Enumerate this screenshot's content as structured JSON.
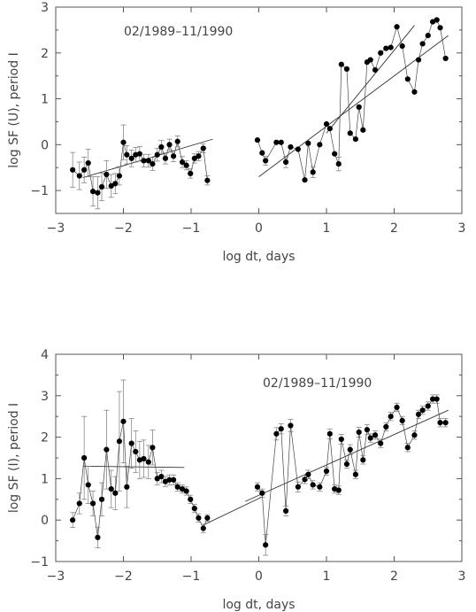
{
  "chart_data": [
    {
      "type": "scatter",
      "title": "",
      "annotation": "02/1989–11/1990",
      "xlabel": "log dt, days",
      "ylabel": "log SF (U), period I",
      "xlim": [
        -3,
        3
      ],
      "ylim": [
        -1.5,
        3
      ],
      "xticks": [
        "−3",
        "−2",
        "−1",
        "0",
        "1",
        "2",
        "3"
      ],
      "yticks": [
        "−1",
        "0",
        "1",
        "2",
        "3"
      ],
      "grid": false,
      "series": [
        {
          "x": [
            -2.75,
            -2.65,
            -2.58,
            -2.52,
            -2.45,
            -2.38,
            -2.32,
            -2.25,
            -2.18,
            -2.12,
            -2.06,
            -2.0,
            -1.95,
            -1.88,
            -1.82,
            -1.76,
            -1.7,
            -1.63,
            -1.57,
            -1.5,
            -1.44,
            -1.38,
            -1.32,
            -1.26,
            -1.2,
            -1.13,
            -1.07,
            -1.01,
            -0.95,
            -0.89,
            -0.82,
            -0.76
          ],
          "y": [
            -0.55,
            -0.68,
            -0.55,
            -0.4,
            -1.02,
            -1.05,
            -0.92,
            -0.65,
            -0.9,
            -0.85,
            -0.68,
            0.05,
            -0.22,
            -0.3,
            -0.22,
            -0.2,
            -0.35,
            -0.35,
            -0.42,
            -0.22,
            -0.05,
            -0.3,
            0.0,
            -0.25,
            0.07,
            -0.38,
            -0.45,
            -0.63,
            -0.3,
            -0.25,
            -0.08,
            -0.78
          ],
          "err": [
            0.38,
            0.3,
            0.28,
            0.3,
            0.32,
            0.35,
            0.3,
            0.3,
            0.25,
            0.22,
            0.2,
            0.38,
            0.2,
            0.18,
            0.16,
            0.16,
            0.14,
            0.14,
            0.14,
            0.14,
            0.14,
            0.12,
            0.12,
            0.12,
            0.12,
            0.12,
            0.1,
            0.1,
            0.1,
            0.1,
            0.1,
            0.1
          ]
        },
        {
          "x": [
            -0.02,
            0.05,
            0.1,
            0.26,
            0.33,
            0.4,
            0.47,
            0.58,
            0.68,
            0.73,
            0.8,
            0.9,
            1.0,
            1.05,
            1.12,
            1.18,
            1.22,
            1.3,
            1.35,
            1.43,
            1.48,
            1.54,
            1.6,
            1.65,
            1.72,
            1.8,
            1.88,
            1.95,
            2.04,
            2.12,
            2.2,
            2.3,
            2.36,
            2.42,
            2.5,
            2.57,
            2.63,
            2.68,
            2.76
          ],
          "y": [
            0.1,
            -0.18,
            -0.35,
            0.05,
            0.05,
            -0.38,
            -0.05,
            -0.1,
            -0.77,
            0.03,
            -0.6,
            0.0,
            0.45,
            0.35,
            -0.2,
            -0.42,
            1.75,
            1.65,
            0.25,
            0.12,
            0.82,
            0.32,
            1.8,
            1.85,
            1.63,
            2.0,
            2.1,
            2.12,
            2.57,
            2.15,
            1.43,
            1.15,
            1.85,
            2.2,
            2.38,
            2.68,
            2.72,
            2.55,
            1.88
          ],
          "err": [
            0,
            0,
            0.1,
            0,
            0,
            0.12,
            0,
            0,
            0,
            0,
            0.12,
            0,
            0,
            0,
            0,
            0.15,
            0,
            0,
            0,
            0,
            0,
            0,
            0,
            0,
            0,
            0,
            0,
            0,
            0,
            0,
            0,
            0,
            0,
            0,
            0,
            0,
            0,
            0,
            0
          ]
        }
      ],
      "fit_lines": [
        {
          "x": [
            -2.6,
            -0.68
          ],
          "y": [
            -0.72,
            0.12
          ]
        },
        {
          "x": [
            0.0,
            2.8
          ],
          "y": [
            -0.7,
            2.38
          ]
        },
        {
          "x": [
            1.0,
            2.3
          ],
          "y": [
            0.25,
            2.6
          ]
        }
      ]
    },
    {
      "type": "scatter",
      "title": "",
      "annotation": "02/1989–11/1990",
      "xlabel": "log dt, days",
      "ylabel": "log SF (I), period I",
      "xlim": [
        -3,
        3
      ],
      "ylim": [
        -1,
        4
      ],
      "xticks": [
        "−3",
        "−2",
        "−1",
        "0",
        "1",
        "2",
        "3"
      ],
      "yticks": [
        "−1",
        "0",
        "1",
        "2",
        "3",
        "4"
      ],
      "grid": false,
      "series": [
        {
          "x": [
            -2.75,
            -2.65,
            -2.58,
            -2.52,
            -2.45,
            -2.38,
            -2.32,
            -2.25,
            -2.18,
            -2.12,
            -2.06,
            -2.0,
            -1.95,
            -1.88,
            -1.82,
            -1.76,
            -1.7,
            -1.63,
            -1.57,
            -1.5,
            -1.44,
            -1.38,
            -1.32,
            -1.26,
            -1.2,
            -1.13,
            -1.07,
            -1.01,
            -0.95,
            -0.89,
            -0.82,
            -0.76
          ],
          "y": [
            0.0,
            0.4,
            1.5,
            0.85,
            0.4,
            -0.42,
            0.5,
            1.7,
            0.75,
            0.65,
            1.9,
            2.38,
            0.8,
            1.85,
            1.65,
            1.45,
            1.48,
            1.4,
            1.75,
            1.0,
            1.05,
            0.93,
            0.97,
            0.97,
            0.8,
            0.75,
            0.7,
            0.5,
            0.28,
            0.05,
            -0.2,
            0.05
          ],
          "err": [
            0.18,
            0.25,
            1.0,
            0.45,
            0.3,
            0.25,
            0.4,
            0.95,
            0.45,
            0.4,
            1.2,
            1.0,
            0.5,
            0.6,
            0.5,
            0.45,
            0.45,
            0.4,
            0.42,
            0.15,
            0.15,
            0.12,
            0.12,
            0.12,
            0.1,
            0.1,
            0.1,
            0.1,
            0.1,
            0.1,
            0.1,
            0.08
          ]
        },
        {
          "x": [
            -0.02,
            0.05,
            0.1,
            0.26,
            0.33,
            0.4,
            0.47,
            0.58,
            0.68,
            0.73,
            0.8,
            0.9,
            1.0,
            1.05,
            1.12,
            1.18,
            1.22,
            1.3,
            1.35,
            1.43,
            1.48,
            1.54,
            1.6,
            1.65,
            1.72,
            1.8,
            1.88,
            1.95,
            2.04,
            2.12,
            2.2,
            2.3,
            2.36,
            2.42,
            2.5,
            2.57,
            2.63,
            2.68,
            2.76
          ],
          "y": [
            0.8,
            0.65,
            -0.6,
            2.08,
            2.2,
            0.22,
            2.28,
            0.8,
            0.98,
            1.1,
            0.85,
            0.8,
            1.18,
            2.08,
            0.75,
            0.72,
            1.95,
            1.35,
            1.7,
            1.1,
            2.12,
            1.45,
            2.18,
            1.98,
            2.05,
            1.85,
            2.25,
            2.5,
            2.72,
            2.4,
            1.75,
            2.05,
            2.55,
            2.65,
            2.75,
            2.92,
            2.92,
            2.35,
            2.35
          ],
          "err": [
            0.1,
            0.1,
            0.25,
            0.15,
            0.12,
            0.12,
            0.15,
            0.12,
            0.1,
            0.1,
            0.1,
            0.1,
            0.1,
            0.12,
            0.1,
            0.1,
            0.12,
            0.1,
            0.12,
            0.1,
            0.12,
            0.1,
            0.12,
            0.1,
            0.1,
            0.1,
            0.1,
            0.1,
            0.1,
            0.1,
            0.1,
            0.1,
            0.1,
            0.1,
            0.1,
            0.1,
            0.1,
            0.1,
            0.1
          ]
        }
      ],
      "fit_lines": [
        {
          "x": [
            -2.6,
            -1.1
          ],
          "y": [
            1.3,
            1.27
          ]
        },
        {
          "x": [
            -0.82,
            0.05
          ],
          "y": [
            -0.12,
            0.56
          ]
        },
        {
          "x": [
            -0.2,
            2.8
          ],
          "y": [
            0.45,
            2.65
          ]
        }
      ]
    }
  ]
}
